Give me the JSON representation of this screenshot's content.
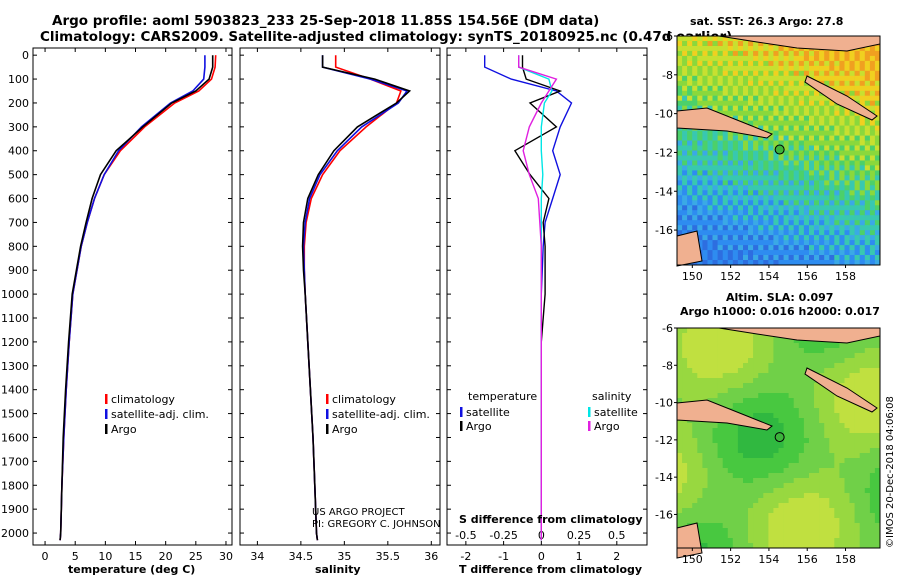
{
  "header": {
    "line1": "Argo profile: aoml 5903823_233 25-Sep-2018 11.85S 154.56E (DM data)",
    "line2": "Climatology: CARS2009. Satellite-adjusted climatology: synTS_20180925.nc (0.47d earlier)"
  },
  "colors": {
    "climatology": "#ff0000",
    "satellite": "#1010e0",
    "argo": "#000000",
    "sat_salinity": "#00e6e6",
    "argo_salinity": "#e020e0"
  },
  "depth_ticks": [
    "0",
    "100",
    "200",
    "300",
    "400",
    "500",
    "600",
    "700",
    "800",
    "900",
    "1000",
    "1100",
    "1200",
    "1300",
    "1400",
    "1500",
    "1600",
    "1700",
    "1800",
    "1900",
    "2000"
  ],
  "panels": {
    "temperature": {
      "xlabel": "temperature (deg C)",
      "xticks": [
        "0",
        "5",
        "10",
        "15",
        "20",
        "25",
        "30"
      ],
      "legend": [
        "climatology",
        "satellite-adj. clim.",
        "Argo"
      ]
    },
    "salinity": {
      "xlabel": "salinity",
      "xticks": [
        "34",
        "34.5",
        "35",
        "35.5",
        "36"
      ],
      "legend": [
        "climatology",
        "satellite-adj. clim.",
        "Argo"
      ],
      "credit1": "US ARGO PROJECT",
      "credit2": "PI: GREGORY C. JOHNSON"
    },
    "difference": {
      "xlabel": "T difference from climatology",
      "top_label": "S difference from climatology",
      "xticks": [
        "-2",
        "-1",
        "0",
        "1",
        "2"
      ],
      "sticks": [
        "-0.5",
        "-0.25",
        "0",
        "0.25",
        "0.5"
      ],
      "legend_t_title": "temperature",
      "legend_s_title": "salinity",
      "legend_t": [
        "satellite",
        "Argo"
      ],
      "legend_s": [
        "satellite",
        "Argo"
      ]
    }
  },
  "maps": {
    "sst_title": "sat. SST: 26.3 Argo: 27.8",
    "sla_title1": "Altim. SLA: 0.097",
    "sla_title2": "Argo h1000: 0.016 h2000: 0.017",
    "lat_ticks": [
      "-6",
      "-8",
      "-10",
      "-12",
      "-14",
      "-16"
    ],
    "lon_ticks": [
      "150",
      "152",
      "154",
      "156",
      "158"
    ],
    "watermark": "©IMOS 20-Dec-2018 04:06:08"
  },
  "chart_data": [
    {
      "type": "line",
      "title": "temperature",
      "xlabel": "temperature (deg C)",
      "ylabel": "depth (m)",
      "xlim": [
        -2,
        31
      ],
      "ylim": [
        2050,
        -30
      ],
      "series": [
        {
          "name": "climatology",
          "x": [
            28.3,
            28.2,
            27.6,
            25.5,
            21.5,
            16.5,
            12.5,
            9.8,
            8.2,
            7.0,
            6.0,
            5.3,
            4.6,
            4.0,
            3.5,
            3.1,
            2.8,
            2.6,
            2.5
          ],
          "y": [
            0,
            50,
            100,
            150,
            200,
            300,
            400,
            500,
            600,
            700,
            800,
            900,
            1000,
            1200,
            1400,
            1600,
            1800,
            2000,
            2030
          ]
        },
        {
          "name": "satellite-adj. clim.",
          "x": [
            26.5,
            26.5,
            26.3,
            24.5,
            20.8,
            16.0,
            12.2,
            9.8,
            8.2,
            7.0,
            6.0,
            5.3,
            4.6,
            4.0,
            3.5,
            3.1,
            2.8,
            2.6,
            2.5
          ],
          "y": [
            0,
            50,
            100,
            150,
            200,
            300,
            400,
            500,
            600,
            700,
            800,
            900,
            1000,
            1200,
            1400,
            1600,
            1800,
            2000,
            2030
          ]
        },
        {
          "name": "Argo",
          "x": [
            27.8,
            27.8,
            27.2,
            25.0,
            21.0,
            16.2,
            11.8,
            9.2,
            7.8,
            6.8,
            5.9,
            5.2,
            4.5,
            3.9,
            3.4,
            3.0,
            2.8,
            2.6,
            2.5
          ],
          "y": [
            0,
            50,
            100,
            150,
            200,
            300,
            400,
            500,
            600,
            700,
            800,
            900,
            1000,
            1200,
            1400,
            1600,
            1800,
            2000,
            2030
          ]
        }
      ]
    },
    {
      "type": "line",
      "title": "salinity",
      "xlabel": "salinity",
      "ylabel": "depth (m)",
      "xlim": [
        33.8,
        36.1
      ],
      "ylim": [
        2050,
        -30
      ],
      "series": [
        {
          "name": "climatology",
          "x": [
            34.9,
            34.9,
            35.3,
            35.65,
            35.6,
            35.25,
            34.95,
            34.75,
            34.62,
            34.56,
            34.54,
            34.54,
            34.55,
            34.58,
            34.61,
            34.64,
            34.66,
            34.68,
            34.69
          ],
          "y": [
            0,
            50,
            100,
            150,
            200,
            300,
            400,
            500,
            600,
            700,
            800,
            900,
            1000,
            1200,
            1400,
            1600,
            1800,
            2000,
            2030
          ]
        },
        {
          "name": "satellite-adj. clim.",
          "x": [
            34.75,
            34.75,
            35.3,
            35.72,
            35.62,
            35.2,
            34.92,
            34.72,
            34.6,
            34.55,
            34.53,
            34.54,
            34.55,
            34.58,
            34.61,
            34.64,
            34.66,
            34.68,
            34.69
          ],
          "y": [
            0,
            50,
            100,
            150,
            200,
            300,
            400,
            500,
            600,
            700,
            800,
            900,
            1000,
            1200,
            1400,
            1600,
            1800,
            2000,
            2030
          ]
        },
        {
          "name": "Argo",
          "x": [
            34.75,
            34.75,
            35.35,
            35.75,
            35.6,
            35.15,
            34.88,
            34.7,
            34.58,
            34.53,
            34.52,
            34.53,
            34.55,
            34.58,
            34.61,
            34.64,
            34.66,
            34.68,
            34.69
          ],
          "y": [
            0,
            50,
            100,
            150,
            200,
            300,
            400,
            500,
            600,
            700,
            800,
            900,
            1000,
            1200,
            1400,
            1600,
            1800,
            2000,
            2030
          ]
        }
      ]
    },
    {
      "type": "line",
      "title": "differences from climatology",
      "xlabel": "T difference from climatology",
      "x2label": "S difference from climatology",
      "xlim": [
        -2.5,
        2.8
      ],
      "x2lim": [
        -0.625,
        0.7
      ],
      "ylim": [
        2050,
        -30
      ],
      "series": [
        {
          "name": "temperature satellite",
          "x": [
            -1.5,
            -1.5,
            -0.8,
            0.4,
            0.8,
            0.5,
            0.3,
            0.5,
            0.3,
            0.1,
            0.05,
            0.0,
            0.0,
            0.0,
            0.0,
            0.0,
            0.0,
            0.0
          ],
          "y": [
            0,
            50,
            100,
            150,
            200,
            300,
            400,
            500,
            600,
            700,
            800,
            1000,
            1200,
            1400,
            1600,
            1800,
            2000,
            2030
          ]
        },
        {
          "name": "temperature Argo",
          "x": [
            -0.5,
            -0.5,
            -0.4,
            0.5,
            -0.3,
            0.4,
            -0.7,
            -0.3,
            0.2,
            0.05,
            0.1,
            0.1,
            0.0,
            0.0,
            0.0,
            0.0,
            0.0,
            0.0
          ],
          "y": [
            0,
            50,
            100,
            150,
            200,
            300,
            400,
            500,
            600,
            700,
            800,
            1000,
            1200,
            1400,
            1600,
            1800,
            2000,
            2030
          ]
        },
        {
          "name": "salinity satellite",
          "x": [
            -0.15,
            -0.15,
            0.05,
            0.07,
            0.02,
            0.0,
            0.0,
            0.01,
            0.0,
            0.0,
            0.0,
            0.0,
            0.0,
            0.0,
            0.0,
            0.0,
            0.0,
            0.0
          ],
          "y": [
            0,
            50,
            100,
            150,
            200,
            300,
            400,
            500,
            600,
            700,
            800,
            1000,
            1200,
            1400,
            1600,
            1800,
            2000,
            2030
          ]
        },
        {
          "name": "salinity Argo",
          "x": [
            -0.15,
            -0.15,
            0.1,
            0.05,
            0.0,
            -0.08,
            -0.12,
            -0.08,
            -0.02,
            -0.01,
            0.0,
            0.0,
            0.0,
            0.0,
            0.0,
            0.0,
            0.0,
            0.0
          ],
          "y": [
            0,
            50,
            100,
            150,
            200,
            300,
            400,
            500,
            600,
            700,
            800,
            1000,
            1200,
            1400,
            1600,
            1800,
            2000,
            2030
          ]
        }
      ]
    }
  ]
}
